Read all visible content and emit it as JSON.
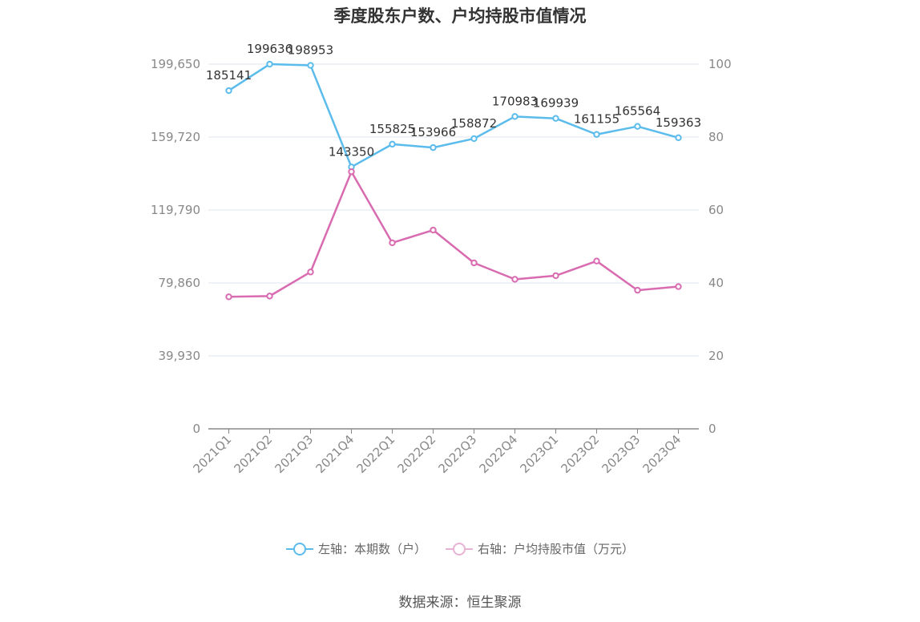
{
  "title": "季度股东户数、户均持股市值情况",
  "source": "数据来源：恒生聚源",
  "colors": {
    "left_series": "#5bbcec",
    "right_series": "#d96bb0",
    "grid": "#dfe6ee",
    "axis": "#888888"
  },
  "chart_data": {
    "type": "line",
    "categories": [
      "2021Q1",
      "2021Q2",
      "2021Q3",
      "2021Q4",
      "2022Q1",
      "2022Q2",
      "2022Q3",
      "2022Q4",
      "2023Q1",
      "2023Q2",
      "2023Q3",
      "2023Q4"
    ],
    "left_axis": {
      "ticks": [
        0,
        39930,
        79860,
        119790,
        159720,
        199650
      ],
      "tick_labels": [
        "0",
        "39,930",
        "79,860",
        "119,790",
        "159,720",
        "199,650"
      ],
      "range": [
        0,
        199650
      ]
    },
    "right_axis": {
      "ticks": [
        0,
        20,
        40,
        60,
        80,
        100
      ],
      "tick_labels": [
        "0",
        "20",
        "40",
        "60",
        "80",
        "100"
      ],
      "range": [
        0,
        100
      ]
    },
    "series": [
      {
        "name": "左轴：本期数（户）",
        "axis": "left",
        "values": [
          185141,
          199636,
          198953,
          143350,
          155825,
          153966,
          158872,
          170983,
          169939,
          161155,
          165564,
          159363
        ],
        "labels": [
          "185141",
          "199636",
          "198953",
          "143350",
          "155825",
          "153966",
          "158872",
          "170983",
          "169939",
          "161155",
          "165564",
          "159363"
        ]
      },
      {
        "name": "右轴：户均持股市值（万元）",
        "axis": "right",
        "values": [
          36.2,
          36.4,
          43.0,
          70.5,
          51.0,
          54.5,
          45.5,
          41.0,
          42.0,
          46.0,
          38.0,
          39.0
        ]
      }
    ],
    "grid": true,
    "legend_position": "bottom"
  }
}
